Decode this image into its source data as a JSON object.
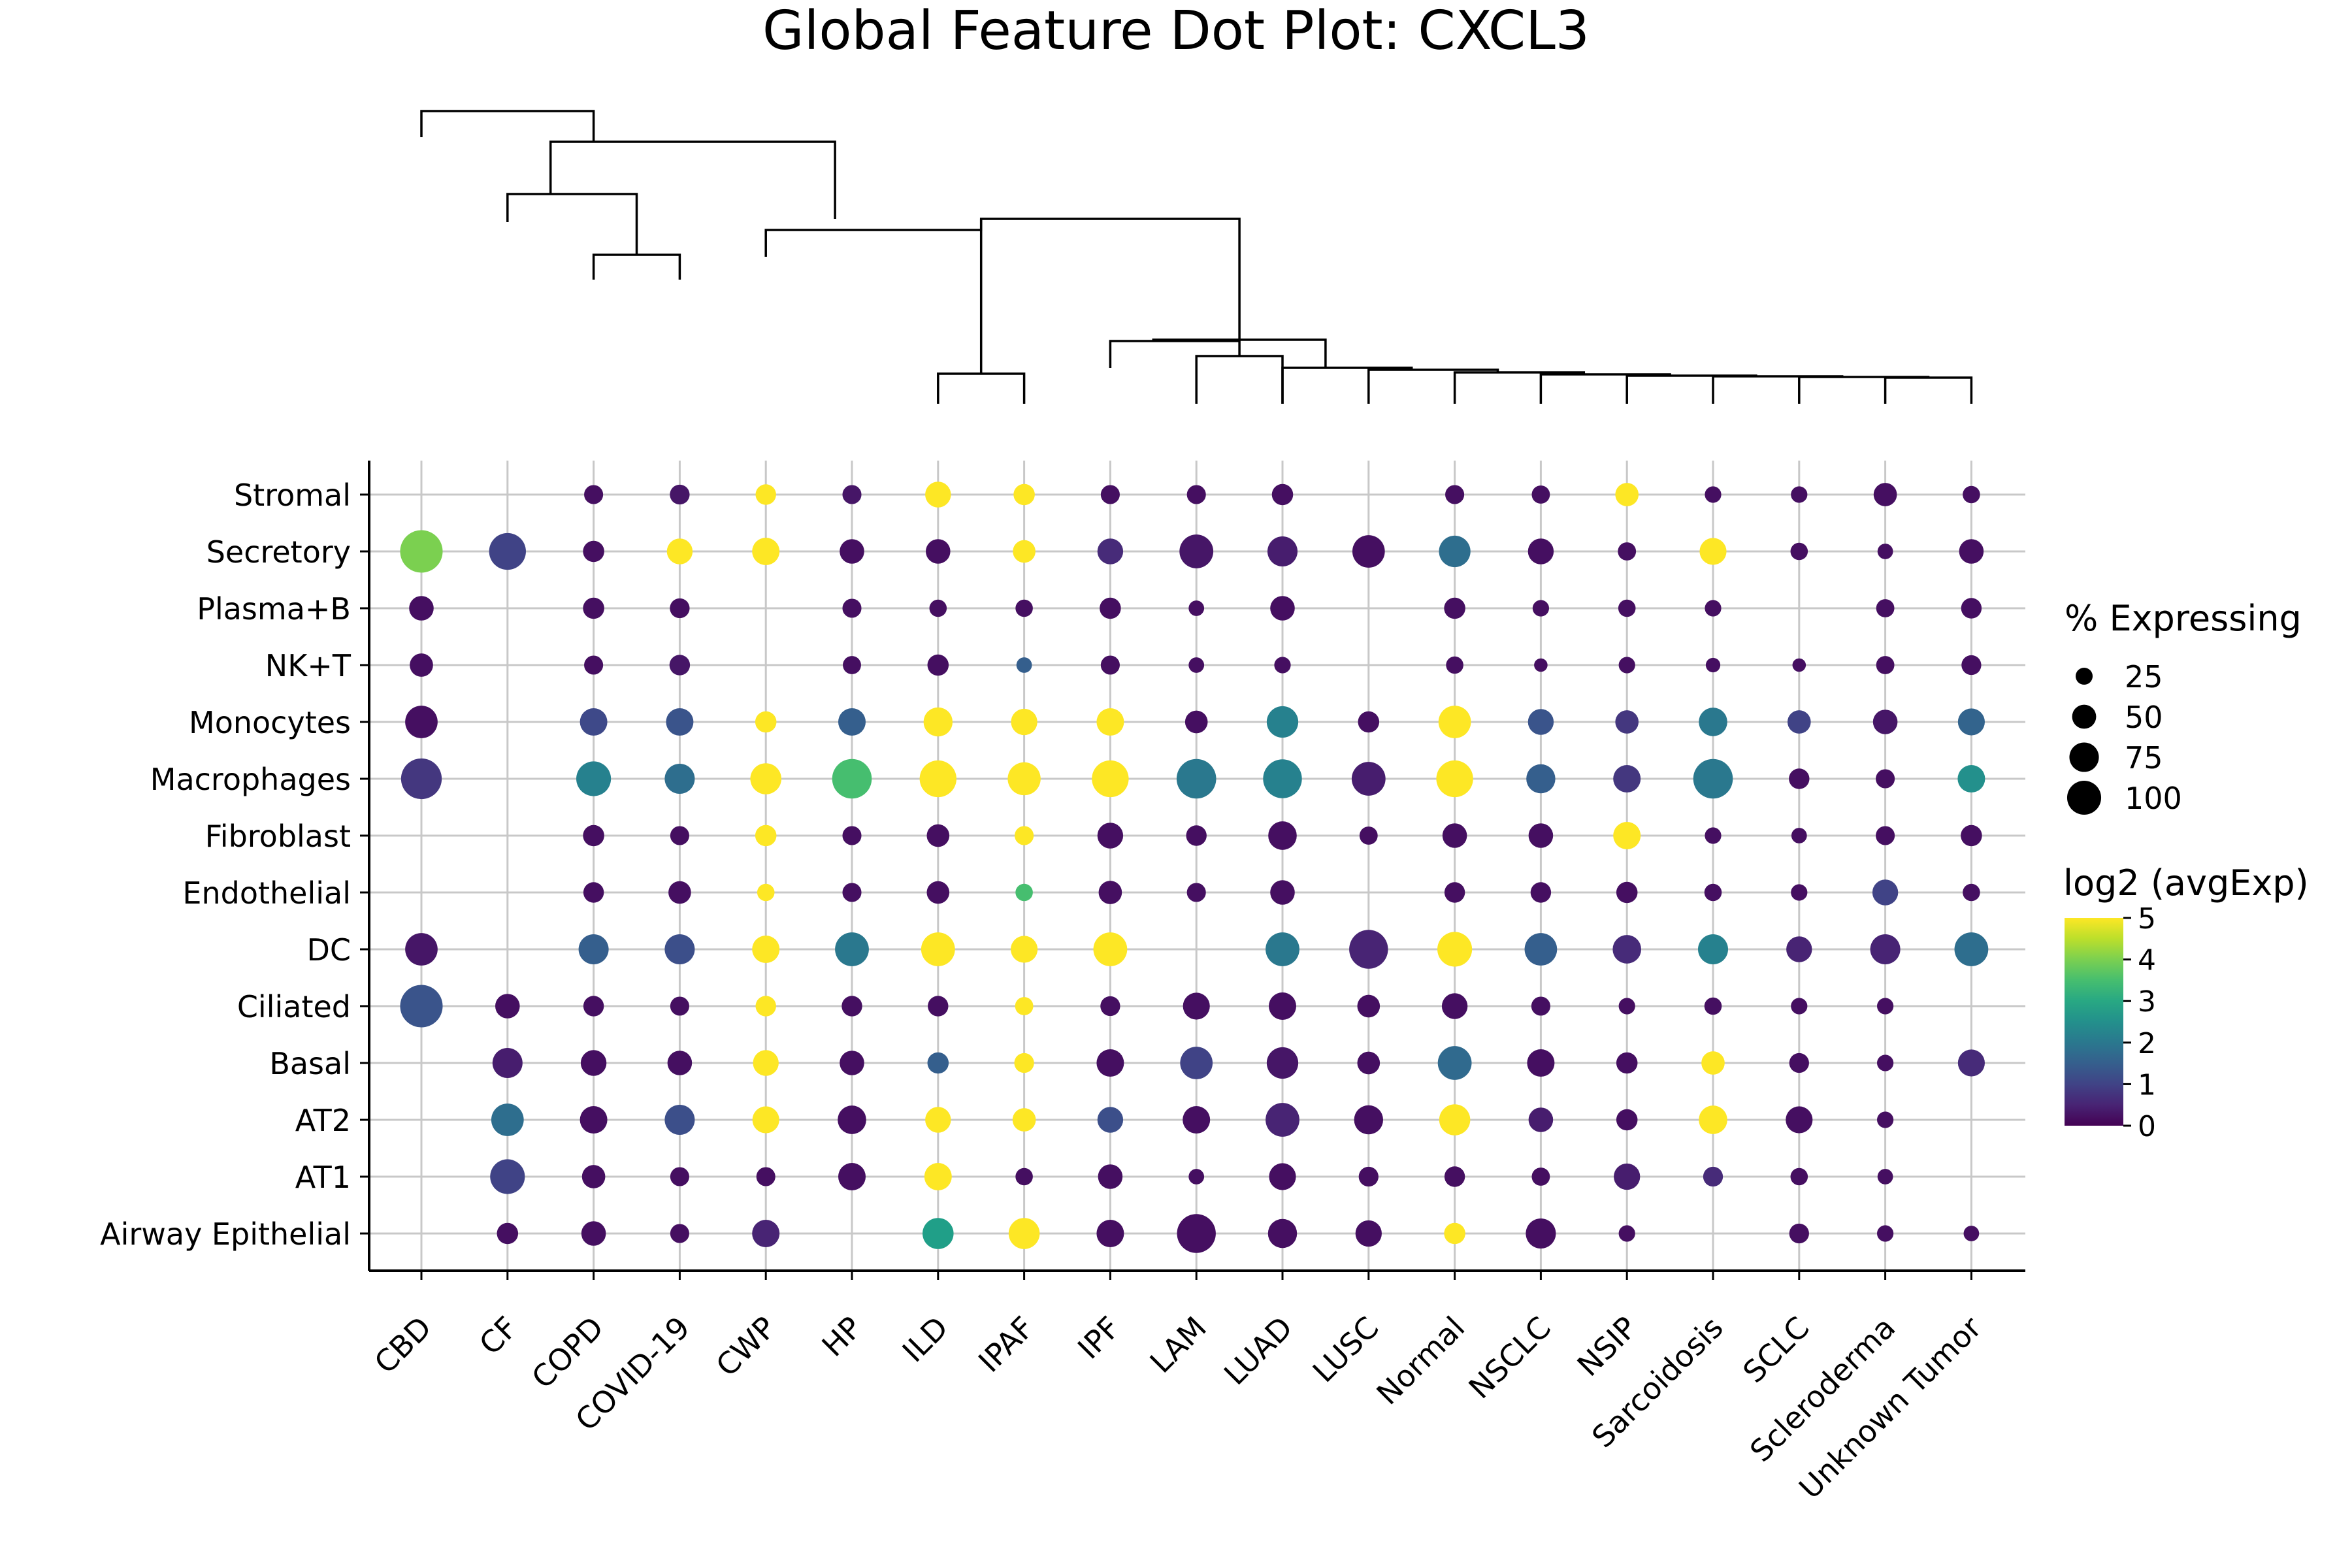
{
  "chart_data": {
    "type": "scatter",
    "title": "Global Feature Dot Plot: CXCL3",
    "x_categories": [
      "CBD",
      "CF",
      "COPD",
      "COVID-19",
      "CWP",
      "HP",
      "ILD",
      "IPAF",
      "IPF",
      "LAM",
      "LUAD",
      "LUSC",
      "Normal",
      "NSCLC",
      "NSIP",
      "Sarcoidosis",
      "SCLC",
      "Scleroderma",
      "Unknown Tumor"
    ],
    "y_categories": [
      "Stromal",
      "Secretory",
      "Plasma+B",
      "NK+T",
      "Monocytes",
      "Macrophages",
      "Fibroblast",
      "Endothelial",
      "DC",
      "Ciliated",
      "Basal",
      "AT2",
      "AT1",
      "Airway Epithelial"
    ],
    "size_legend": {
      "title": "% Expressing",
      "labels": [
        "25",
        "50",
        "75",
        "100"
      ],
      "values": [
        25,
        50,
        75,
        100
      ]
    },
    "color_legend": {
      "title": "log2 (avgExp)",
      "range": [
        0,
        5
      ],
      "tick_labels": [
        "0",
        "1",
        "2",
        "3",
        "4",
        "5"
      ],
      "colormap": "viridis"
    },
    "grid": true,
    "legend_position": "right",
    "dendrogram": "top",
    "points": [
      [
        "CBD",
        "Secretory",
        60,
        4.0
      ],
      [
        "CBD",
        "Plasma+B",
        20,
        0.2
      ],
      [
        "CBD",
        "NK+T",
        18,
        0.2
      ],
      [
        "CBD",
        "Monocytes",
        35,
        0.2
      ],
      [
        "CBD",
        "Macrophages",
        55,
        0.8
      ],
      [
        "CBD",
        "DC",
        35,
        0.3
      ],
      [
        "CBD",
        "Ciliated",
        60,
        1.3
      ],
      [
        "CF",
        "Secretory",
        45,
        1.0
      ],
      [
        "CF",
        "Ciliated",
        20,
        0.2
      ],
      [
        "CF",
        "Basal",
        30,
        0.4
      ],
      [
        "CF",
        "AT2",
        35,
        1.8
      ],
      [
        "CF",
        "AT1",
        40,
        1.0
      ],
      [
        "CF",
        "Airway Epithelial",
        15,
        0.2
      ],
      [
        "COPD",
        "Stromal",
        12,
        0.2
      ],
      [
        "COPD",
        "Secretory",
        15,
        0.2
      ],
      [
        "COPD",
        "Plasma+B",
        15,
        0.2
      ],
      [
        "COPD",
        "NK+T",
        12,
        0.2
      ],
      [
        "COPD",
        "Monocytes",
        25,
        1.1
      ],
      [
        "COPD",
        "Macrophages",
        40,
        2.2
      ],
      [
        "COPD",
        "Fibroblast",
        15,
        0.2
      ],
      [
        "COPD",
        "Endothelial",
        14,
        0.2
      ],
      [
        "COPD",
        "DC",
        30,
        1.5
      ],
      [
        "COPD",
        "Ciliated",
        14,
        0.2
      ],
      [
        "COPD",
        "Basal",
        22,
        0.2
      ],
      [
        "COPD",
        "AT2",
        25,
        0.2
      ],
      [
        "COPD",
        "AT1",
        18,
        0.2
      ],
      [
        "COPD",
        "Airway Epithelial",
        20,
        0.2
      ],
      [
        "COVID-19",
        "Stromal",
        13,
        0.3
      ],
      [
        "COVID-19",
        "Secretory",
        22,
        5
      ],
      [
        "COVID-19",
        "Plasma+B",
        13,
        0.2
      ],
      [
        "COVID-19",
        "NK+T",
        14,
        0.3
      ],
      [
        "COVID-19",
        "Monocytes",
        25,
        1.3
      ],
      [
        "COVID-19",
        "Macrophages",
        30,
        1.8
      ],
      [
        "COVID-19",
        "Fibroblast",
        12,
        0.2
      ],
      [
        "COVID-19",
        "Endothelial",
        17,
        0.2
      ],
      [
        "COVID-19",
        "DC",
        30,
        1.2
      ],
      [
        "COVID-19",
        "Ciliated",
        12,
        0.2
      ],
      [
        "COVID-19",
        "Basal",
        20,
        0.2
      ],
      [
        "COVID-19",
        "AT2",
        30,
        1.2
      ],
      [
        "COVID-19",
        "AT1",
        12,
        0.2
      ],
      [
        "COVID-19",
        "Airway Epithelial",
        12,
        0.2
      ],
      [
        "CWP",
        "Stromal",
        14,
        5
      ],
      [
        "CWP",
        "Secretory",
        25,
        5
      ],
      [
        "CWP",
        "Monocytes",
        15,
        5
      ],
      [
        "CWP",
        "Macrophages",
        32,
        5
      ],
      [
        "CWP",
        "Fibroblast",
        15,
        5
      ],
      [
        "CWP",
        "Endothelial",
        10,
        5
      ],
      [
        "CWP",
        "DC",
        25,
        5
      ],
      [
        "CWP",
        "Ciliated",
        14,
        5
      ],
      [
        "CWP",
        "Basal",
        22,
        5
      ],
      [
        "CWP",
        "AT2",
        24,
        5
      ],
      [
        "CWP",
        "AT1",
        12,
        0.2
      ],
      [
        "CWP",
        "Airway Epithelial",
        25,
        0.5
      ],
      [
        "HP",
        "Stromal",
        12,
        0.3
      ],
      [
        "HP",
        "Secretory",
        20,
        0.2
      ],
      [
        "HP",
        "Plasma+B",
        12,
        0.2
      ],
      [
        "HP",
        "NK+T",
        11,
        0.2
      ],
      [
        "HP",
        "Monocytes",
        25,
        1.5
      ],
      [
        "HP",
        "Macrophages",
        52,
        3.5
      ],
      [
        "HP",
        "Fibroblast",
        12,
        0.2
      ],
      [
        "HP",
        "Endothelial",
        12,
        0.2
      ],
      [
        "HP",
        "DC",
        38,
        2.0
      ],
      [
        "HP",
        "Ciliated",
        14,
        0.2
      ],
      [
        "HP",
        "Basal",
        20,
        0.2
      ],
      [
        "HP",
        "AT2",
        27,
        0.2
      ],
      [
        "HP",
        "AT1",
        25,
        0.2
      ],
      [
        "ILD",
        "Stromal",
        22,
        5
      ],
      [
        "ILD",
        "Secretory",
        20,
        0.2
      ],
      [
        "ILD",
        "Plasma+B",
        10,
        0.2
      ],
      [
        "ILD",
        "NK+T",
        15,
        0.2
      ],
      [
        "ILD",
        "Monocytes",
        28,
        5
      ],
      [
        "ILD",
        "Macrophages",
        45,
        5
      ],
      [
        "ILD",
        "Fibroblast",
        17,
        0.2
      ],
      [
        "ILD",
        "Endothelial",
        17,
        0.2
      ],
      [
        "ILD",
        "DC",
        38,
        5
      ],
      [
        "ILD",
        "Ciliated",
        14,
        0.2
      ],
      [
        "ILD",
        "Basal",
        15,
        1.5
      ],
      [
        "ILD",
        "AT2",
        22,
        5
      ],
      [
        "ILD",
        "AT1",
        25,
        5
      ],
      [
        "ILD",
        "Airway Epithelial",
        32,
        2.8
      ],
      [
        "IPAF",
        "Stromal",
        15,
        5
      ],
      [
        "IPAF",
        "Secretory",
        17,
        5
      ],
      [
        "IPAF",
        "Plasma+B",
        10,
        0.2
      ],
      [
        "IPAF",
        "NK+T",
        8,
        1.5
      ],
      [
        "IPAF",
        "Monocytes",
        23,
        5
      ],
      [
        "IPAF",
        "Macrophages",
        36,
        5
      ],
      [
        "IPAF",
        "Fibroblast",
        12,
        5
      ],
      [
        "IPAF",
        "Endothelial",
        10,
        3.5
      ],
      [
        "IPAF",
        "DC",
        24,
        5
      ],
      [
        "IPAF",
        "Ciliated",
        11,
        5
      ],
      [
        "IPAF",
        "Basal",
        13,
        5
      ],
      [
        "IPAF",
        "AT2",
        18,
        5
      ],
      [
        "IPAF",
        "AT1",
        10,
        0.2
      ],
      [
        "IPAF",
        "Airway Epithelial",
        32,
        5
      ],
      [
        "IPF",
        "Stromal",
        12,
        0.2
      ],
      [
        "IPF",
        "Secretory",
        22,
        0.6
      ],
      [
        "IPF",
        "Plasma+B",
        15,
        0.2
      ],
      [
        "IPF",
        "NK+T",
        12,
        0.2
      ],
      [
        "IPF",
        "Monocytes",
        25,
        5
      ],
      [
        "IPF",
        "Macrophages",
        45,
        5
      ],
      [
        "IPF",
        "Fibroblast",
        22,
        0.2
      ],
      [
        "IPF",
        "Endothelial",
        18,
        0.2
      ],
      [
        "IPF",
        "DC",
        38,
        5
      ],
      [
        "IPF",
        "Ciliated",
        13,
        0.2
      ],
      [
        "IPF",
        "Basal",
        25,
        0.2
      ],
      [
        "IPF",
        "AT2",
        22,
        1.2
      ],
      [
        "IPF",
        "AT1",
        20,
        0.2
      ],
      [
        "IPF",
        "Airway Epithelial",
        25,
        0.2
      ],
      [
        "LAM",
        "Stromal",
        12,
        0.2
      ],
      [
        "LAM",
        "Secretory",
        38,
        0.3
      ],
      [
        "LAM",
        "Plasma+B",
        8,
        0.2
      ],
      [
        "LAM",
        "NK+T",
        8,
        0.2
      ],
      [
        "LAM",
        "Monocytes",
        17,
        0.2
      ],
      [
        "LAM",
        "Macrophages",
        52,
        2.0
      ],
      [
        "LAM",
        "Fibroblast",
        14,
        0.2
      ],
      [
        "LAM",
        "Endothelial",
        12,
        0.2
      ],
      [
        "LAM",
        "Ciliated",
        24,
        0.2
      ],
      [
        "LAM",
        "Basal",
        35,
        1.0
      ],
      [
        "LAM",
        "AT2",
        25,
        0.2
      ],
      [
        "LAM",
        "AT1",
        8,
        0.2
      ],
      [
        "LAM",
        "Airway Epithelial",
        50,
        0.2
      ],
      [
        "LUAD",
        "Stromal",
        15,
        0.2
      ],
      [
        "LUAD",
        "Secretory",
        30,
        0.4
      ],
      [
        "LUAD",
        "Plasma+B",
        20,
        0.2
      ],
      [
        "LUAD",
        "NK+T",
        9,
        0.2
      ],
      [
        "LUAD",
        "Monocytes",
        33,
        2.2
      ],
      [
        "LUAD",
        "Macrophages",
        50,
        2.2
      ],
      [
        "LUAD",
        "Fibroblast",
        27,
        0.2
      ],
      [
        "LUAD",
        "Endothelial",
        20,
        0.2
      ],
      [
        "LUAD",
        "DC",
        38,
        2.0
      ],
      [
        "LUAD",
        "Ciliated",
        25,
        0.2
      ],
      [
        "LUAD",
        "Basal",
        33,
        0.3
      ],
      [
        "LUAD",
        "AT2",
        38,
        0.5
      ],
      [
        "LUAD",
        "AT1",
        24,
        0.2
      ],
      [
        "LUAD",
        "Airway Epithelial",
        28,
        0.2
      ],
      [
        "LUSC",
        "Secretory",
        35,
        0.2
      ],
      [
        "LUSC",
        "Monocytes",
        15,
        0.2
      ],
      [
        "LUSC",
        "Macrophages",
        38,
        0.4
      ],
      [
        "LUSC",
        "Fibroblast",
        11,
        0.2
      ],
      [
        "LUSC",
        "DC",
        50,
        0.5
      ],
      [
        "LUSC",
        "Ciliated",
        17,
        0.2
      ],
      [
        "LUSC",
        "Basal",
        17,
        0.2
      ],
      [
        "LUSC",
        "AT2",
        28,
        0.2
      ],
      [
        "LUSC",
        "AT1",
        13,
        0.2
      ],
      [
        "LUSC",
        "Airway Epithelial",
        23,
        0.2
      ],
      [
        "Normal",
        "Stromal",
        12,
        0.2
      ],
      [
        "Normal",
        "Secretory",
        33,
        1.8
      ],
      [
        "Normal",
        "Plasma+B",
        15,
        0.2
      ],
      [
        "Normal",
        "NK+T",
        10,
        0.2
      ],
      [
        "Normal",
        "Monocytes",
        35,
        5
      ],
      [
        "Normal",
        "Macrophages",
        45,
        5
      ],
      [
        "Normal",
        "Fibroblast",
        20,
        0.2
      ],
      [
        "Normal",
        "Endothelial",
        14,
        0.2
      ],
      [
        "Normal",
        "DC",
        40,
        5
      ],
      [
        "Normal",
        "Ciliated",
        22,
        0.2
      ],
      [
        "Normal",
        "Basal",
        38,
        1.7
      ],
      [
        "Normal",
        "AT2",
        32,
        5
      ],
      [
        "Normal",
        "AT1",
        14,
        0.2
      ],
      [
        "Normal",
        "Airway Epithelial",
        15,
        5
      ],
      [
        "NSCLC",
        "Stromal",
        11,
        0.2
      ],
      [
        "NSCLC",
        "Secretory",
        22,
        0.2
      ],
      [
        "NSCLC",
        "Plasma+B",
        9,
        0.2
      ],
      [
        "NSCLC",
        "NK+T",
        6,
        0.2
      ],
      [
        "NSCLC",
        "Monocytes",
        22,
        1.3
      ],
      [
        "NSCLC",
        "Macrophages",
        28,
        1.5
      ],
      [
        "NSCLC",
        "Fibroblast",
        20,
        0.2
      ],
      [
        "NSCLC",
        "Endothelial",
        14,
        0.2
      ],
      [
        "NSCLC",
        "DC",
        35,
        1.5
      ],
      [
        "NSCLC",
        "Ciliated",
        12,
        0.2
      ],
      [
        "NSCLC",
        "Basal",
        25,
        0.2
      ],
      [
        "NSCLC",
        "AT2",
        20,
        0.4
      ],
      [
        "NSCLC",
        "AT1",
        11,
        0.2
      ],
      [
        "NSCLC",
        "Airway Epithelial",
        30,
        0.2
      ],
      [
        "NSIP",
        "Stromal",
        18,
        5
      ],
      [
        "NSIP",
        "Secretory",
        11,
        0.2
      ],
      [
        "NSIP",
        "Plasma+B",
        10,
        0.2
      ],
      [
        "NSIP",
        "NK+T",
        9,
        0.2
      ],
      [
        "NSIP",
        "Monocytes",
        18,
        0.8
      ],
      [
        "NSIP",
        "Macrophages",
        25,
        0.8
      ],
      [
        "NSIP",
        "Fibroblast",
        25,
        5
      ],
      [
        "NSIP",
        "Endothelial",
        15,
        0.2
      ],
      [
        "NSIP",
        "DC",
        27,
        0.6
      ],
      [
        "NSIP",
        "Ciliated",
        9,
        0.2
      ],
      [
        "NSIP",
        "Basal",
        15,
        0.2
      ],
      [
        "NSIP",
        "AT2",
        15,
        0.2
      ],
      [
        "NSIP",
        "AT1",
        23,
        0.4
      ],
      [
        "NSIP",
        "Airway Epithelial",
        9,
        0.2
      ],
      [
        "Sarcoidosis",
        "Stromal",
        9,
        0.2
      ],
      [
        "Sarcoidosis",
        "Secretory",
        24,
        5
      ],
      [
        "Sarcoidosis",
        "Plasma+B",
        9,
        0.2
      ],
      [
        "Sarcoidosis",
        "NK+T",
        7,
        0.2
      ],
      [
        "Sarcoidosis",
        "Monocytes",
        27,
        2.0
      ],
      [
        "Sarcoidosis",
        "Macrophages",
        52,
        2.0
      ],
      [
        "Sarcoidosis",
        "Fibroblast",
        9,
        0.2
      ],
      [
        "Sarcoidosis",
        "Endothelial",
        10,
        0.2
      ],
      [
        "Sarcoidosis",
        "DC",
        30,
        2.2
      ],
      [
        "Sarcoidosis",
        "Ciliated",
        10,
        0.2
      ],
      [
        "Sarcoidosis",
        "Basal",
        18,
        5
      ],
      [
        "Sarcoidosis",
        "AT2",
        27,
        5
      ],
      [
        "Sarcoidosis",
        "AT1",
        13,
        0.6
      ],
      [
        "SCLC",
        "Stromal",
        9,
        0.2
      ],
      [
        "SCLC",
        "Secretory",
        10,
        0.2
      ],
      [
        "SCLC",
        "NK+T",
        6,
        0.2
      ],
      [
        "SCLC",
        "Monocytes",
        18,
        1.0
      ],
      [
        "SCLC",
        "Macrophages",
        14,
        0.2
      ],
      [
        "SCLC",
        "Fibroblast",
        8,
        0.2
      ],
      [
        "SCLC",
        "Endothelial",
        9,
        0.2
      ],
      [
        "SCLC",
        "DC",
        22,
        0.5
      ],
      [
        "SCLC",
        "Ciliated",
        9,
        0.2
      ],
      [
        "SCLC",
        "Basal",
        13,
        0.2
      ],
      [
        "SCLC",
        "AT2",
        24,
        0.2
      ],
      [
        "SCLC",
        "AT1",
        10,
        0.2
      ],
      [
        "SCLC",
        "Airway Epithelial",
        13,
        0.2
      ],
      [
        "Scleroderma",
        "Stromal",
        18,
        0.2
      ],
      [
        "Scleroderma",
        "Secretory",
        8,
        0.2
      ],
      [
        "Scleroderma",
        "Plasma+B",
        11,
        0.2
      ],
      [
        "Scleroderma",
        "NK+T",
        11,
        0.2
      ],
      [
        "Scleroderma",
        "Monocytes",
        20,
        0.3
      ],
      [
        "Scleroderma",
        "Macrophages",
        12,
        0.2
      ],
      [
        "Scleroderma",
        "Fibroblast",
        12,
        0.2
      ],
      [
        "Scleroderma",
        "Endothelial",
        22,
        1.0
      ],
      [
        "Scleroderma",
        "DC",
        30,
        0.5
      ],
      [
        "Scleroderma",
        "Ciliated",
        9,
        0.2
      ],
      [
        "Scleroderma",
        "Basal",
        9,
        0.2
      ],
      [
        "Scleroderma",
        "AT2",
        9,
        0.2
      ],
      [
        "Scleroderma",
        "AT1",
        8,
        0.2
      ],
      [
        "Scleroderma",
        "Airway Epithelial",
        9,
        0.2
      ],
      [
        "Unknown Tumor",
        "Stromal",
        10,
        0.2
      ],
      [
        "Unknown Tumor",
        "Secretory",
        20,
        0.2
      ],
      [
        "Unknown Tumor",
        "Plasma+B",
        14,
        0.2
      ],
      [
        "Unknown Tumor",
        "NK+T",
        13,
        0.2
      ],
      [
        "Unknown Tumor",
        "Monocytes",
        24,
        1.6
      ],
      [
        "Unknown Tumor",
        "Macrophages",
        25,
        2.5
      ],
      [
        "Unknown Tumor",
        "Fibroblast",
        15,
        0.2
      ],
      [
        "Unknown Tumor",
        "Endothelial",
        10,
        0.2
      ],
      [
        "Unknown Tumor",
        "DC",
        38,
        1.8
      ],
      [
        "Unknown Tumor",
        "Basal",
        24,
        0.6
      ],
      [
        "Unknown Tumor",
        "Airway Epithelial",
        8,
        0.2
      ]
    ]
  }
}
